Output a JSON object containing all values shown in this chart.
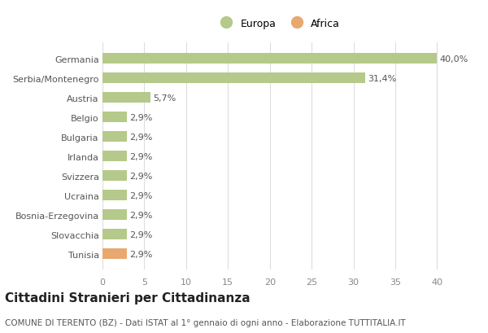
{
  "categories": [
    "Tunisia",
    "Slovacchia",
    "Bosnia-Erzegovina",
    "Ucraina",
    "Svizzera",
    "Irlanda",
    "Bulgaria",
    "Belgio",
    "Austria",
    "Serbia/Montenegro",
    "Germania"
  ],
  "values": [
    2.9,
    2.9,
    2.9,
    2.9,
    2.9,
    2.9,
    2.9,
    2.9,
    5.7,
    31.4,
    40.0
  ],
  "continent": [
    "Africa",
    "Europa",
    "Europa",
    "Europa",
    "Europa",
    "Europa",
    "Europa",
    "Europa",
    "Europa",
    "Europa",
    "Europa"
  ],
  "labels": [
    "2,9%",
    "2,9%",
    "2,9%",
    "2,9%",
    "2,9%",
    "2,9%",
    "2,9%",
    "2,9%",
    "5,7%",
    "31,4%",
    "40,0%"
  ],
  "color_europa": "#b5c98a",
  "color_africa": "#e8a870",
  "title": "Cittadini Stranieri per Cittadinanza",
  "subtitle": "COMUNE DI TERENTO (BZ) - Dati ISTAT al 1° gennaio di ogni anno - Elaborazione TUTTITALIA.IT",
  "legend_europa": "Europa",
  "legend_africa": "Africa",
  "xlim": [
    0,
    42
  ],
  "xticks": [
    0,
    5,
    10,
    15,
    20,
    25,
    30,
    35,
    40
  ],
  "bg_color": "#ffffff",
  "grid_color": "#dddddd",
  "bar_height": 0.55,
  "label_fontsize": 8,
  "title_fontsize": 11,
  "subtitle_fontsize": 7.5,
  "ytick_fontsize": 8
}
